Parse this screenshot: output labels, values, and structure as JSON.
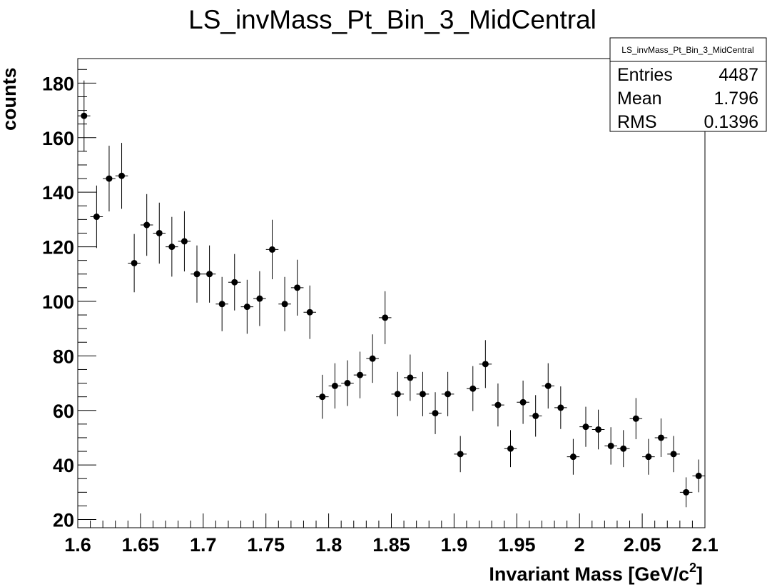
{
  "chart_data": {
    "type": "scatter",
    "title": "LS_invMass_Pt_Bin_3_MidCentral",
    "xlabel": "Invariant Mass [GeV/c",
    "xlabel_sup": "2",
    "xlabel_end": "]",
    "ylabel": "counts",
    "xlim": [
      1.6,
      2.1
    ],
    "ylim": [
      17,
      189
    ],
    "x_ticks": [
      "1.6",
      "1.65",
      "1.7",
      "1.75",
      "1.8",
      "1.85",
      "1.9",
      "1.95",
      "2",
      "2.05",
      "2.1"
    ],
    "y_ticks": [
      "20",
      "40",
      "60",
      "80",
      "100",
      "120",
      "140",
      "160",
      "180"
    ],
    "bin_width": 0.01,
    "x": [
      1.605,
      1.615,
      1.625,
      1.635,
      1.645,
      1.655,
      1.665,
      1.675,
      1.685,
      1.695,
      1.705,
      1.715,
      1.725,
      1.735,
      1.745,
      1.755,
      1.765,
      1.775,
      1.785,
      1.795,
      1.805,
      1.815,
      1.825,
      1.835,
      1.845,
      1.855,
      1.865,
      1.875,
      1.885,
      1.895,
      1.905,
      1.915,
      1.925,
      1.935,
      1.945,
      1.955,
      1.965,
      1.975,
      1.985,
      1.995,
      2.005,
      2.015,
      2.025,
      2.035,
      2.045,
      2.055,
      2.065,
      2.075,
      2.085,
      2.095
    ],
    "y": [
      168,
      131,
      145,
      146,
      114,
      128,
      125,
      120,
      122,
      110,
      110,
      99,
      107,
      98,
      101,
      119,
      99,
      105,
      96,
      65,
      69,
      70,
      73,
      79,
      94,
      66,
      72,
      66,
      59,
      66,
      44,
      68,
      77,
      62,
      46,
      63,
      58,
      69,
      61,
      43,
      54,
      53,
      47,
      46,
      57,
      43,
      50,
      44,
      30,
      36
    ],
    "marker_color": "#000000",
    "stats_box": {
      "title": "LS_invMass_Pt_Bin_3_MidCentral",
      "rows": [
        {
          "label": "Entries",
          "value": "4487"
        },
        {
          "label": "Mean",
          "value": "1.796"
        },
        {
          "label": "RMS",
          "value": "0.1396"
        }
      ],
      "placement": "top-right"
    },
    "grid": false
  }
}
